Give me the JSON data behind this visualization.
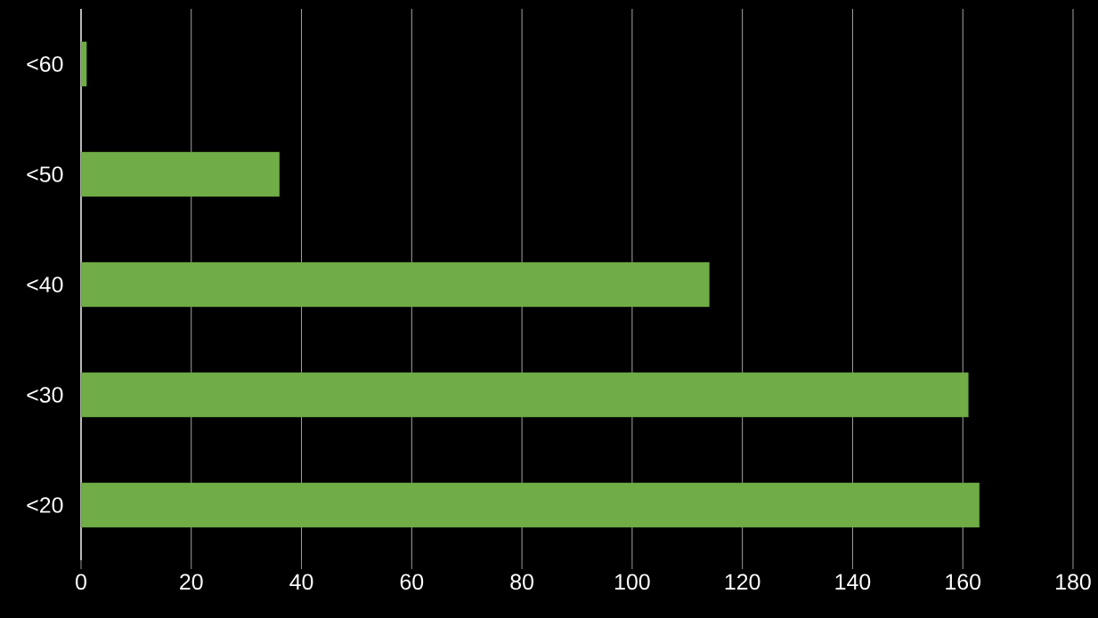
{
  "chart_data": {
    "type": "bar",
    "orientation": "horizontal",
    "categories": [
      "<60",
      "<50",
      "<40",
      "<30",
      "<20"
    ],
    "values": [
      1,
      36,
      114,
      161,
      163
    ],
    "color": "#70ad47",
    "xlim": [
      0,
      180
    ],
    "xticks": [
      0,
      20,
      40,
      60,
      80,
      100,
      120,
      140,
      160,
      180
    ],
    "grid": "x"
  }
}
